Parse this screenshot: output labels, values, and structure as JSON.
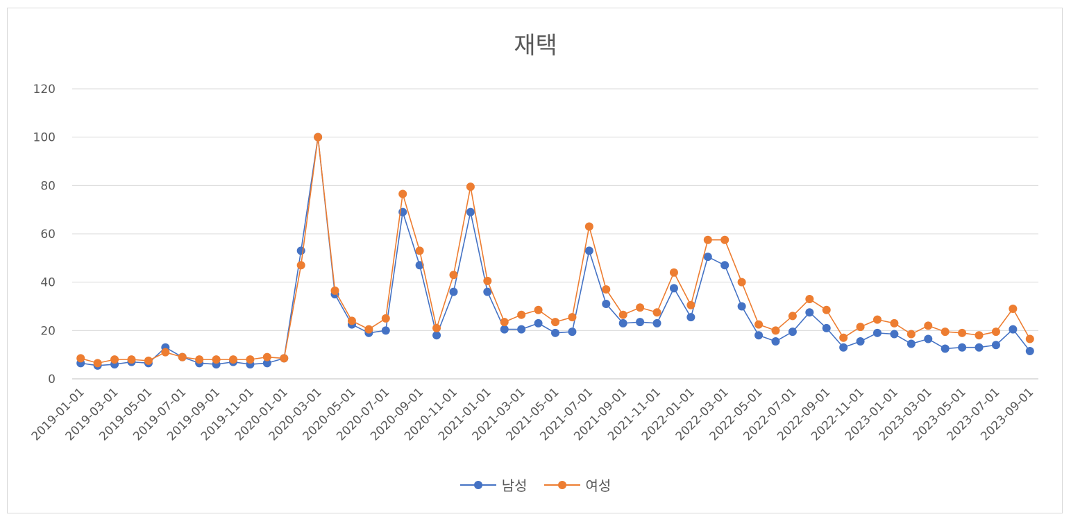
{
  "chart_data": {
    "type": "line",
    "title": "재택",
    "xlabel": "",
    "ylabel": "",
    "ylim": [
      0,
      120
    ],
    "yticks": [
      0,
      20,
      40,
      60,
      80,
      100,
      120
    ],
    "grid": true,
    "legend_position": "bottom",
    "x": [
      "2019-01-01",
      "2019-02-01",
      "2019-03-01",
      "2019-04-01",
      "2019-05-01",
      "2019-06-01",
      "2019-07-01",
      "2019-08-01",
      "2019-09-01",
      "2019-10-01",
      "2019-11-01",
      "2019-12-01",
      "2020-01-01",
      "2020-02-01",
      "2020-03-01",
      "2020-04-01",
      "2020-05-01",
      "2020-06-01",
      "2020-07-01",
      "2020-08-01",
      "2020-09-01",
      "2020-10-01",
      "2020-11-01",
      "2020-12-01",
      "2021-01-01",
      "2021-02-01",
      "2021-03-01",
      "2021-04-01",
      "2021-05-01",
      "2021-06-01",
      "2021-07-01",
      "2021-08-01",
      "2021-09-01",
      "2021-10-01",
      "2021-11-01",
      "2021-12-01",
      "2022-01-01",
      "2022-02-01",
      "2022-03-01",
      "2022-04-01",
      "2022-05-01",
      "2022-06-01",
      "2022-07-01",
      "2022-08-01",
      "2022-09-01",
      "2022-10-01",
      "2022-11-01",
      "2022-12-01",
      "2023-01-01",
      "2023-02-01",
      "2023-03-01",
      "2023-04-01",
      "2023-05-01",
      "2023-06-01",
      "2023-07-01",
      "2023-08-01",
      "2023-09-01"
    ],
    "xtick_labels": [
      "2019-01-01",
      "2019-03-01",
      "2019-05-01",
      "2019-07-01",
      "2019-09-01",
      "2019-11-01",
      "2020-01-01",
      "2020-03-01",
      "2020-05-01",
      "2020-07-01",
      "2020-09-01",
      "2020-11-01",
      "2021-01-01",
      "2021-03-01",
      "2021-05-01",
      "2021-07-01",
      "2021-09-01",
      "2021-11-01",
      "2022-01-01",
      "2022-03-01",
      "2022-05-01",
      "2022-07-01",
      "2022-09-01",
      "2022-11-01",
      "2023-01-01",
      "2023-03-01",
      "2023-05-01",
      "2023-07-01",
      "2023-09-01"
    ],
    "series": [
      {
        "name": "남성",
        "color": "#4472c4",
        "values": [
          6.5,
          5.5,
          6,
          7,
          6.5,
          13,
          9,
          6.5,
          6,
          7,
          6,
          6.5,
          8.5,
          53,
          100,
          35,
          22.5,
          19,
          20,
          69,
          47,
          18,
          36,
          69,
          36,
          20.5,
          20.5,
          23,
          19,
          19.5,
          53,
          31,
          23,
          23.5,
          23,
          37.5,
          25.5,
          50.5,
          47,
          30,
          18,
          15.5,
          19.5,
          27.5,
          21,
          13,
          15.5,
          19,
          18.5,
          14.5,
          16.5,
          12.5,
          13,
          13,
          14,
          20.5,
          11.5
        ]
      },
      {
        "name": "여성",
        "color": "#ed7d31",
        "values": [
          8.5,
          6.5,
          8,
          8,
          7.5,
          11,
          9,
          8,
          8,
          8,
          8,
          9,
          8.5,
          47,
          100,
          36.5,
          24,
          20.5,
          25,
          76.5,
          53,
          21,
          43,
          79.5,
          40.5,
          23.5,
          26.5,
          28.5,
          23.5,
          25.5,
          63,
          37,
          26.5,
          29.5,
          27.5,
          44,
          30.5,
          57.5,
          57.5,
          40,
          22.5,
          20,
          26,
          33,
          28.5,
          17,
          21.5,
          24.5,
          23,
          18.5,
          22,
          19.5,
          19,
          18,
          19.5,
          29,
          16.5
        ]
      }
    ]
  }
}
